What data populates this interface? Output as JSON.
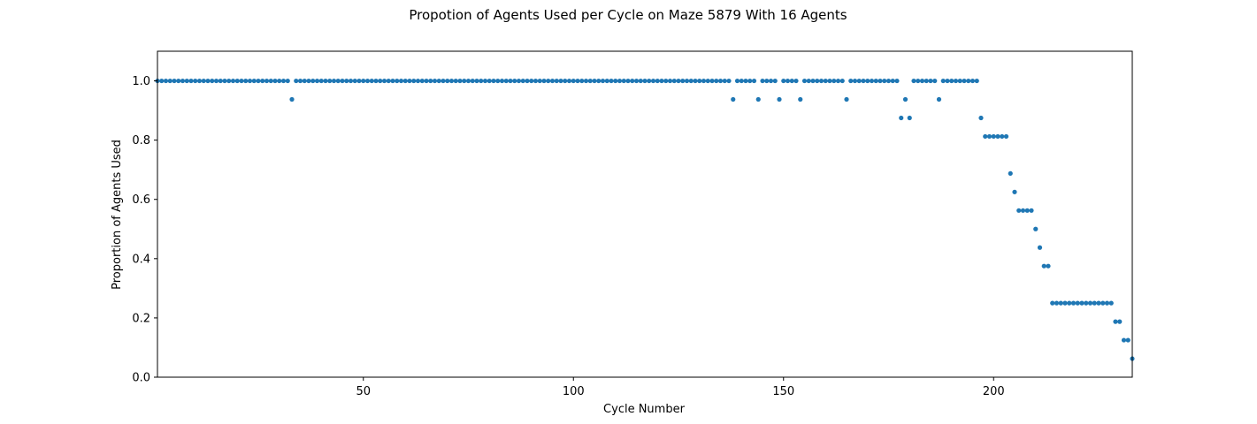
{
  "chart_data": {
    "type": "scatter",
    "title": "Propotion of Agents Used per Cycle on Maze 5879 With 16 Agents",
    "xlabel": "Cycle Number",
    "ylabel": "Proportion of Agents Used",
    "xlim": [
      1,
      233
    ],
    "ylim": [
      0,
      1.1
    ],
    "x_ticks": [
      50,
      100,
      150,
      200
    ],
    "x_tick_labels": [
      "50",
      "100",
      "150",
      "200"
    ],
    "y_ticks": [
      0,
      0.2,
      0.4,
      0.6,
      0.8,
      1.0
    ],
    "y_tick_labels": [
      "0.0",
      "0.2",
      "0.4",
      "0.6",
      "0.8",
      "1.0"
    ],
    "grid": false,
    "marker_color": "#1f77b4",
    "series": [
      {
        "x_start": 1,
        "y": [
          1,
          1,
          1,
          1,
          1,
          1,
          1,
          1,
          1,
          1,
          1,
          1,
          1,
          1,
          1,
          1,
          1,
          1,
          1,
          1,
          1,
          1,
          1,
          1,
          1,
          1,
          1,
          1,
          1,
          1,
          1,
          1,
          0.9375,
          1,
          1,
          1,
          1,
          1,
          1,
          1,
          1,
          1,
          1,
          1,
          1,
          1,
          1,
          1,
          1,
          1,
          1,
          1,
          1,
          1,
          1,
          1,
          1,
          1,
          1,
          1,
          1,
          1,
          1,
          1,
          1,
          1,
          1,
          1,
          1,
          1,
          1,
          1,
          1,
          1,
          1,
          1,
          1,
          1,
          1,
          1,
          1,
          1,
          1,
          1,
          1,
          1,
          1,
          1,
          1,
          1,
          1,
          1,
          1,
          1,
          1,
          1,
          1,
          1,
          1,
          1,
          1,
          1,
          1,
          1,
          1,
          1,
          1,
          1,
          1,
          1,
          1,
          1,
          1,
          1,
          1,
          1,
          1,
          1,
          1,
          1,
          1,
          1,
          1,
          1,
          1,
          1,
          1,
          1,
          1,
          1,
          1,
          1,
          1,
          1,
          1,
          1,
          1,
          0.9375,
          1,
          1,
          1,
          1,
          1,
          0.9375,
          1,
          1,
          1,
          1,
          0.9375,
          1,
          1,
          1,
          1,
          0.9375,
          1,
          1,
          1,
          1,
          1,
          1,
          1,
          1,
          1,
          1,
          0.9375,
          1,
          1,
          1,
          1,
          1,
          1,
          1,
          1,
          1,
          1,
          1,
          1,
          0.875,
          0.9375,
          0.875,
          1,
          1,
          1,
          1,
          1,
          1,
          0.9375,
          1,
          1,
          1,
          1,
          1,
          1,
          1,
          1,
          1,
          0.875,
          0.8125,
          0.8125,
          0.8125,
          0.8125,
          0.8125,
          0.8125,
          0.6875,
          0.625,
          0.5625,
          0.5625,
          0.5625,
          0.5625,
          0.5,
          0.4375,
          0.375,
          0.375,
          0.25,
          0.25,
          0.25,
          0.25,
          0.25,
          0.25,
          0.25,
          0.25,
          0.25,
          0.25,
          0.25,
          0.25,
          0.25,
          0.25,
          0.25,
          0.1875,
          0.1875,
          0.125,
          0.125,
          0.0625
        ]
      }
    ]
  }
}
